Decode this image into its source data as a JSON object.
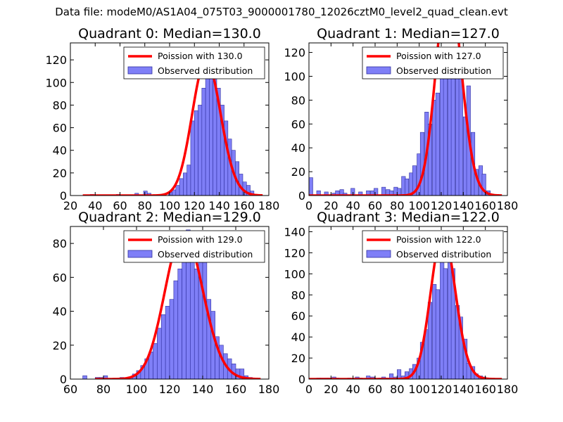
{
  "figure": {
    "suptitle": "Data file: modeM0/AS1A04_075T03_9000001780_12026cztM0_level2_quad_clean.evt"
  },
  "colors": {
    "bar_fill": "#7f7ff7",
    "bar_edge": "#3030a0",
    "poisson_line": "#ff0000"
  },
  "chart_data": [
    {
      "type": "bar",
      "title": "Quadrant 0: Median=130.0",
      "legend": {
        "location": "top-right",
        "entries": [
          "Poission with 130.0",
          "Observed distribution"
        ]
      },
      "xlim": [
        20,
        180
      ],
      "ylim": [
        0,
        135
      ],
      "xticks": [
        20,
        40,
        60,
        80,
        100,
        120,
        140,
        160,
        180
      ],
      "yticks": [
        0,
        20,
        40,
        60,
        80,
        100,
        120
      ],
      "bin_width": 3,
      "histogram": {
        "x": [
          36,
          57,
          72,
          79,
          82,
          99,
          102,
          105,
          108,
          111,
          114,
          117,
          120,
          123,
          126,
          129,
          132,
          135,
          138,
          141,
          144,
          147,
          150,
          153,
          156,
          159,
          162,
          165,
          168
        ],
        "counts": [
          1,
          1,
          2,
          4,
          2,
          3,
          5,
          9,
          15,
          20,
          27,
          66,
          75,
          80,
          95,
          120,
          105,
          105,
          95,
          80,
          66,
          50,
          40,
          30,
          19,
          12,
          9,
          4,
          1
        ]
      },
      "poisson": {
        "mean": 130.0,
        "x_range": [
          30,
          175
        ]
      }
    },
    {
      "type": "bar",
      "title": "Quadrant 1: Median=127.0",
      "legend": {
        "location": "top-right",
        "entries": [
          "Poission with 127.0",
          "Observed distribution"
        ]
      },
      "xlim": [
        0,
        180
      ],
      "ylim": [
        0,
        128
      ],
      "xticks": [
        0,
        20,
        40,
        60,
        80,
        100,
        120,
        140,
        160,
        180
      ],
      "yticks": [
        0,
        20,
        40,
        60,
        80,
        100,
        120
      ],
      "bin_width": 3.5,
      "histogram": {
        "x": [
          0,
          7,
          14,
          21,
          24,
          28,
          31,
          38,
          45,
          52,
          56,
          59,
          66,
          70,
          73,
          77,
          80,
          84,
          87,
          91,
          94,
          98,
          101,
          105,
          108,
          112,
          115,
          119,
          122,
          126,
          129,
          133,
          136,
          140,
          143,
          147,
          150,
          154,
          157,
          161,
          168
        ],
        "counts": [
          15,
          4,
          3,
          2,
          4,
          5,
          2,
          6,
          3,
          4,
          4,
          6,
          7,
          5,
          4,
          7,
          6,
          16,
          14,
          19,
          25,
          35,
          53,
          70,
          60,
          80,
          86,
          110,
          102,
          100,
          104,
          110,
          100,
          66,
          92,
          53,
          22,
          25,
          18,
          4,
          1
        ]
      },
      "poisson": {
        "mean": 127.0,
        "x_range": [
          0,
          175
        ]
      }
    },
    {
      "type": "bar",
      "title": "Quadrant 2: Median=129.0",
      "legend": {
        "location": "top-right",
        "entries": [
          "Poission with 129.0",
          "Observed distribution"
        ]
      },
      "xlim": [
        60,
        180
      ],
      "ylim": [
        0,
        90
      ],
      "xticks": [
        60,
        80,
        100,
        120,
        140,
        160,
        180
      ],
      "yticks": [
        0,
        20,
        40,
        60,
        80
      ],
      "bin_width": 2.5,
      "histogram": {
        "x": [
          67.5,
          75,
          77.5,
          80,
          90,
          95,
          97.5,
          100,
          102.5,
          105,
          107.5,
          110,
          112.5,
          115,
          117.5,
          120,
          122.5,
          125,
          127.5,
          130,
          132.5,
          135,
          137.5,
          140,
          142.5,
          145,
          147.5,
          150,
          152.5,
          155,
          157.5,
          160,
          162.5,
          165,
          167.5
        ],
        "counts": [
          2,
          1,
          1,
          2,
          1,
          1,
          3,
          5,
          8,
          12,
          16,
          21,
          30,
          38,
          43,
          47,
          58,
          65,
          83,
          88,
          70,
          65,
          70,
          75,
          47,
          40,
          25,
          20,
          15,
          12,
          9,
          6,
          6,
          2,
          1
        ]
      },
      "poisson": {
        "mean": 129.0,
        "x_range": [
          75,
          175
        ]
      }
    },
    {
      "type": "bar",
      "title": "Quadrant 3: Median=122.0",
      "legend": {
        "location": "top-right",
        "entries": [
          "Poission with 122.0",
          "Observed distribution"
        ]
      },
      "xlim": [
        0,
        180
      ],
      "ylim": [
        0,
        145
      ],
      "xticks": [
        0,
        20,
        40,
        60,
        80,
        100,
        120,
        140,
        160,
        180
      ],
      "yticks": [
        0,
        20,
        40,
        60,
        80,
        100,
        120,
        140
      ],
      "bin_width": 3.5,
      "histogram": {
        "x": [
          7,
          10,
          14,
          17,
          21,
          24,
          35,
          42,
          45,
          52,
          56,
          63,
          66,
          70,
          73,
          77,
          80,
          84,
          87,
          91,
          94,
          98,
          101,
          105,
          108,
          112,
          115,
          119,
          122,
          126,
          129,
          133,
          136,
          140,
          143,
          147,
          150,
          154,
          157,
          161
        ],
        "counts": [
          1,
          1,
          1,
          1,
          2,
          1,
          1,
          2,
          1,
          3,
          2,
          1,
          2,
          1,
          5,
          2,
          9,
          3,
          7,
          10,
          14,
          20,
          35,
          47,
          73,
          90,
          85,
          135,
          105,
          130,
          105,
          70,
          59,
          38,
          15,
          12,
          5,
          3,
          2,
          1
        ]
      },
      "poisson": {
        "mean": 122.0,
        "x_range": [
          0,
          175
        ]
      }
    }
  ]
}
